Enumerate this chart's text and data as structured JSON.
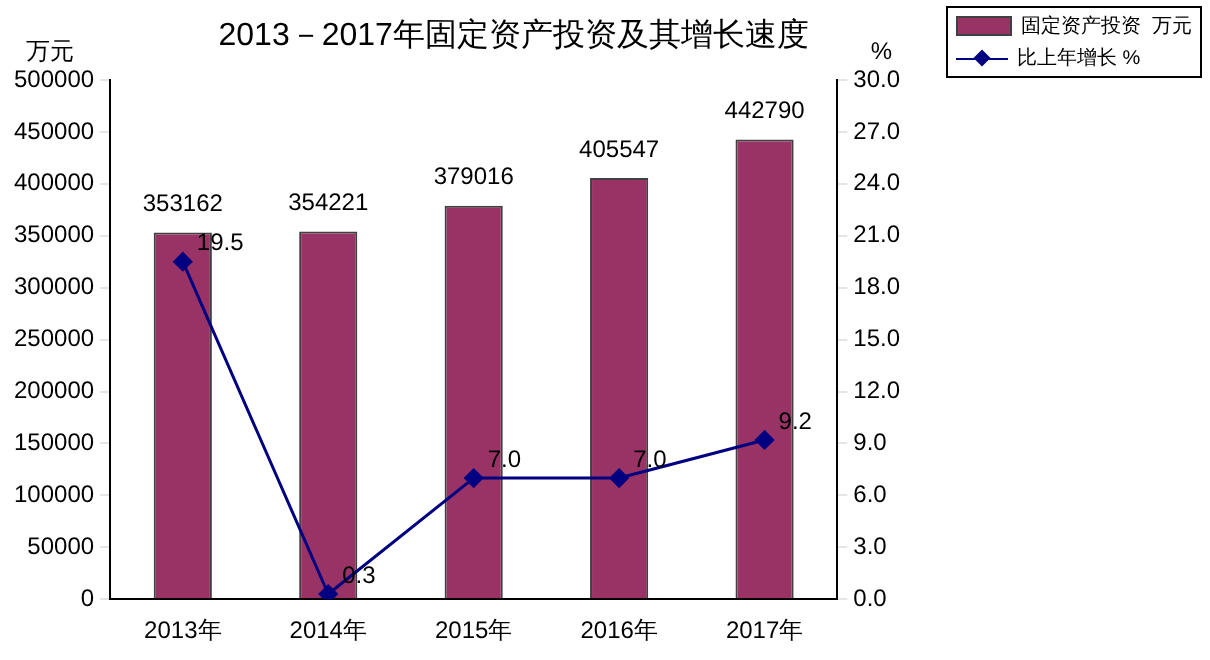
{
  "chart_data": {
    "type": "bar",
    "title": "2013－2017年固定资产投资及其增长速度",
    "ylabel": "万元",
    "y2label": "%",
    "categories": [
      "2013年",
      "2014年",
      "2015年",
      "2016年",
      "2017年"
    ],
    "series": [
      {
        "name": "固定资产投资  万元",
        "color": "#993366",
        "values": [
          353162,
          354221,
          379016,
          405547,
          442790
        ]
      },
      {
        "name": "比上年增长 %",
        "type": "line",
        "axis": "y2",
        "color": "#000080",
        "marker": "diamond",
        "values": [
          19.5,
          0.3,
          7.0,
          7.0,
          9.2
        ],
        "value_labels": [
          "19.5",
          "0.3",
          "7.0",
          "7.0",
          "9.2"
        ]
      }
    ],
    "ylim": [
      0,
      500000
    ],
    "yticks": [
      0,
      50000,
      100000,
      150000,
      200000,
      250000,
      300000,
      350000,
      400000,
      450000,
      500000
    ],
    "y2lim": [
      0,
      30
    ],
    "y2ticks": [
      {
        "value": 0,
        "label": "0.0"
      },
      {
        "value": 3,
        "label": "3.0"
      },
      {
        "value": 6,
        "label": "6.0"
      },
      {
        "value": 9,
        "label": "9.0"
      },
      {
        "value": 12,
        "label": "12.0"
      },
      {
        "value": 15,
        "label": "15.0"
      },
      {
        "value": 18,
        "label": "18.0"
      },
      {
        "value": 21,
        "label": "21.0"
      },
      {
        "value": 24,
        "label": "24.0"
      },
      {
        "value": 27,
        "label": "27.0"
      },
      {
        "value": 30,
        "label": "30.0"
      }
    ],
    "data_labels": true,
    "grid": false,
    "legend": "top right"
  }
}
